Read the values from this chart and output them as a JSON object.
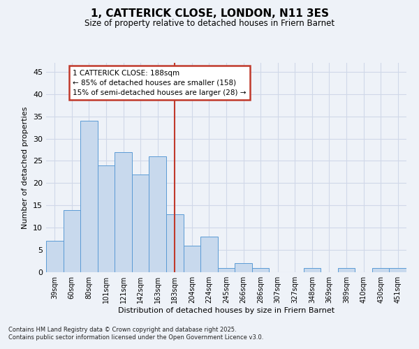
{
  "title": "1, CATTERICK CLOSE, LONDON, N11 3ES",
  "subtitle": "Size of property relative to detached houses in Friern Barnet",
  "xlabel": "Distribution of detached houses by size in Friern Barnet",
  "ylabel": "Number of detached properties",
  "categories": [
    "39sqm",
    "60sqm",
    "80sqm",
    "101sqm",
    "121sqm",
    "142sqm",
    "163sqm",
    "183sqm",
    "204sqm",
    "224sqm",
    "245sqm",
    "266sqm",
    "286sqm",
    "307sqm",
    "327sqm",
    "348sqm",
    "369sqm",
    "389sqm",
    "410sqm",
    "430sqm",
    "451sqm"
  ],
  "values": [
    7,
    14,
    34,
    24,
    27,
    22,
    26,
    13,
    6,
    8,
    1,
    2,
    1,
    0,
    0,
    1,
    0,
    1,
    0,
    1,
    1
  ],
  "bar_color": "#c8d9ed",
  "bar_edge_color": "#5b9bd5",
  "bar_width": 1.0,
  "vline_x": 7,
  "vline_color": "#c0392b",
  "annotation_title": "1 CATTERICK CLOSE: 188sqm",
  "annotation_line1": "← 85% of detached houses are smaller (158)",
  "annotation_line2": "15% of semi-detached houses are larger (28) →",
  "annotation_box_color": "#c0392b",
  "ylim": [
    0,
    47
  ],
  "yticks": [
    0,
    5,
    10,
    15,
    20,
    25,
    30,
    35,
    40,
    45
  ],
  "grid_color": "#d0d8e8",
  "bg_color": "#eef2f8",
  "footnote1": "Contains HM Land Registry data © Crown copyright and database right 2025.",
  "footnote2": "Contains public sector information licensed under the Open Government Licence v3.0."
}
